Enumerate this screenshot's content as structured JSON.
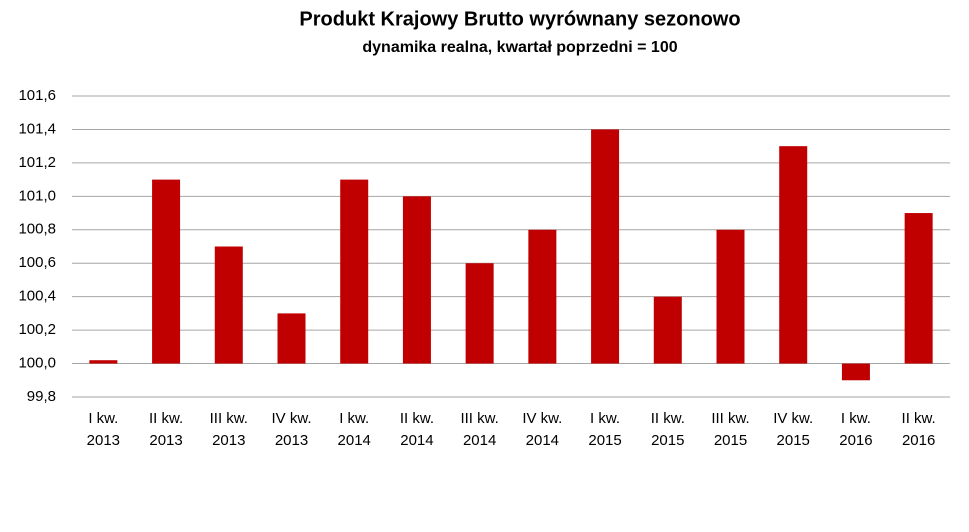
{
  "chart_data": {
    "type": "bar",
    "title": "Produkt Krajowy Brutto wyrównany sezonowo",
    "subtitle": "dynamika realna, kwartał poprzedni = 100",
    "categories": [
      "I kw.\n2013",
      "II kw.\n2013",
      "III kw.\n2013",
      "IV kw.\n2013",
      "I kw.\n2014",
      "II kw.\n2014",
      "III kw.\n2014",
      "IV kw.\n2014",
      "I kw.\n2015",
      "II kw.\n2015",
      "III kw.\n2015",
      "IV kw.\n2015",
      "I kw.\n2016",
      "II kw.\n2016"
    ],
    "values": [
      100.02,
      101.1,
      100.7,
      100.3,
      101.1,
      101.0,
      100.6,
      100.8,
      101.4,
      100.4,
      100.8,
      101.3,
      99.9,
      100.9
    ],
    "baseline": 100,
    "color": "#c00000",
    "ylim": [
      99.8,
      101.6
    ],
    "yticks": [
      {
        "value": 99.8,
        "label": "99,8"
      },
      {
        "value": 100.0,
        "label": "100,0"
      },
      {
        "value": 100.2,
        "label": "100,2"
      },
      {
        "value": 100.4,
        "label": "100,4"
      },
      {
        "value": 100.6,
        "label": "100,6"
      },
      {
        "value": 100.8,
        "label": "100,8"
      },
      {
        "value": 101.0,
        "label": "101,0"
      },
      {
        "value": 101.2,
        "label": "101,2"
      },
      {
        "value": 101.4,
        "label": "101,4"
      },
      {
        "value": 101.6,
        "label": "101,6"
      }
    ],
    "grid": true
  }
}
